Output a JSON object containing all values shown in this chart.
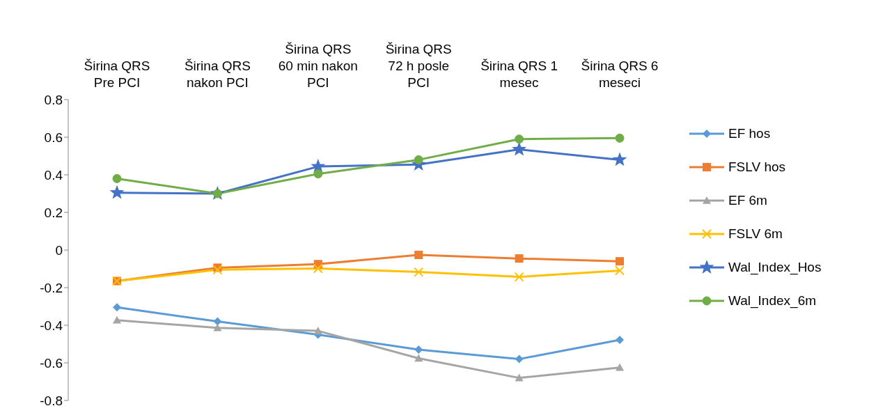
{
  "chart_data": {
    "type": "line",
    "categories": [
      "Širina QRS Pre PCI",
      "Širina QRS nakon PCI",
      "Širina QRS 60 min nakon PCI",
      "Širina QRS 72 h posle PCI",
      "Širina QRS 1 mesec",
      "Širina QRS 6 meseci"
    ],
    "series": [
      {
        "name": "EF hos",
        "color": "#5b9bd5",
        "marker": "diamond",
        "values": [
          -0.305,
          -0.38,
          -0.45,
          -0.53,
          -0.58,
          -0.478
        ]
      },
      {
        "name": "FSLV hos",
        "color": "#ed7d31",
        "marker": "square",
        "values": [
          -0.165,
          -0.094,
          -0.075,
          -0.026,
          -0.045,
          -0.06
        ]
      },
      {
        "name": "EF 6m",
        "color": "#a5a5a5",
        "marker": "triangle",
        "values": [
          -0.373,
          -0.414,
          -0.43,
          -0.576,
          -0.68,
          -0.625
        ]
      },
      {
        "name": "FSLV 6m",
        "color": "#ffc000",
        "marker": "cross",
        "values": [
          -0.165,
          -0.105,
          -0.098,
          -0.117,
          -0.143,
          -0.109
        ]
      },
      {
        "name": "Wal_Index_Hos",
        "color": "#4472c4",
        "marker": "star",
        "values": [
          0.305,
          0.3,
          0.444,
          0.455,
          0.535,
          0.48
        ]
      },
      {
        "name": "Wal_Index_6m",
        "color": "#70ad47",
        "marker": "circle",
        "values": [
          0.38,
          0.3,
          0.405,
          0.48,
          0.59,
          0.595
        ]
      }
    ],
    "ylim": [
      -0.8,
      0.8
    ],
    "yticks": [
      -0.8,
      -0.6,
      -0.4,
      -0.2,
      0,
      0.2,
      0.4,
      0.6,
      0.8
    ],
    "grid": false,
    "legend": "right",
    "line_style": "solid"
  }
}
